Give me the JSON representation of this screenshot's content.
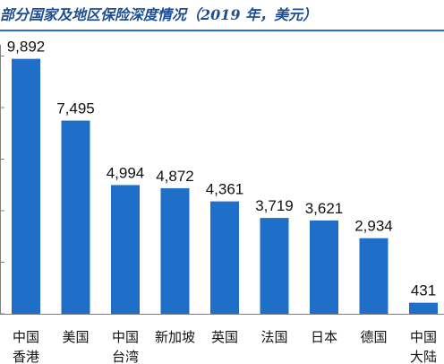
{
  "chart_data": {
    "type": "bar",
    "title": "部分国家及地区保险深度情况（2019 年，美元）",
    "categories": [
      [
        "中国",
        "香港"
      ],
      [
        "美国"
      ],
      [
        "中国",
        "台湾"
      ],
      [
        "新加坡"
      ],
      [
        "英国"
      ],
      [
        "法国"
      ],
      [
        "日本"
      ],
      [
        "德国"
      ],
      [
        "中国",
        "大陆"
      ]
    ],
    "values": [
      9892,
      7495,
      4994,
      4872,
      4361,
      3719,
      3621,
      2934,
      431
    ],
    "value_labels": [
      "9,892",
      "7,495",
      "4,994",
      "4,872",
      "4,361",
      "3,719",
      "3,621",
      "2,934",
      "431"
    ],
    "ylim": [
      0,
      10000
    ],
    "grid": false,
    "bar_color": "#1f6fc9",
    "title_color": "#1f4e91"
  }
}
